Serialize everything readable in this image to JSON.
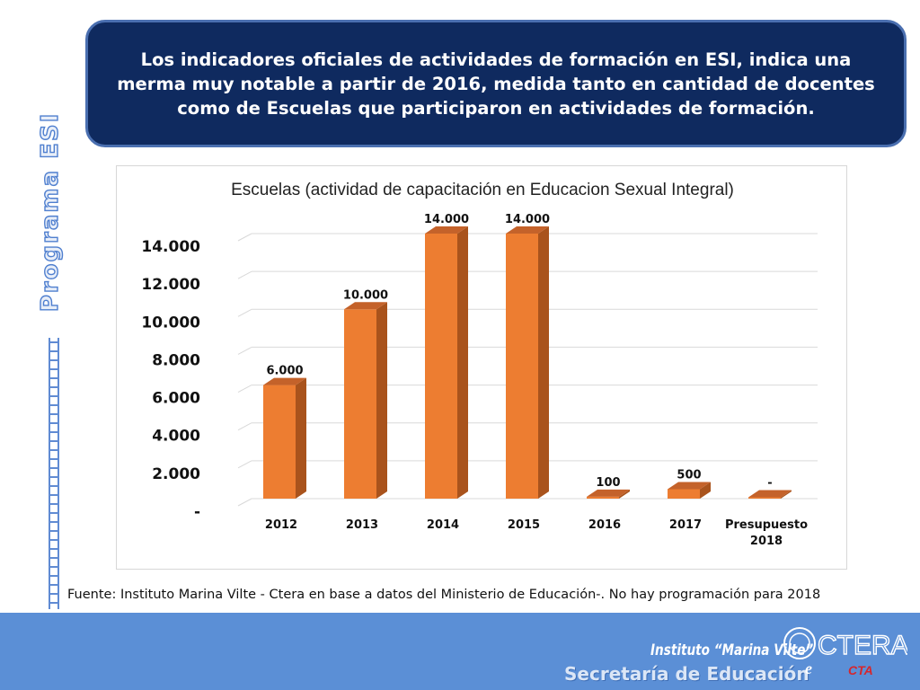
{
  "headline": "Los indicadores oficiales de actividades de formación en ESI, indica una merma muy notable a partir de 2016, medida tanto en cantidad de docentes como  de Escuelas que participaron en actividades de formación.",
  "side_title": "Programa ESI",
  "source_note": "Fuente: Instituto Marina Vilte - Ctera en base a datos del Ministerio de Educación-. No hay programación para 2018",
  "footer": {
    "institute": "Instituto “Marina Vilte”",
    "secretaria": "Secretaría de Educación",
    "logo_main": "CTERA",
    "logo_sub": "CTA"
  },
  "colors": {
    "bar_front": "#ed7d31",
    "bar_side": "#a9531c",
    "bar_top": "#c4622a",
    "headline_bg": "#0f2a5f",
    "footer_bg": "#5b8fd6"
  },
  "chart_data": {
    "type": "bar",
    "title": "Escuelas (actividad de capacitación en Educacion Sexual Integral)",
    "categories": [
      "2012",
      "2013",
      "2014",
      "2015",
      "2016",
      "2017",
      "Presupuesto 2018"
    ],
    "values": [
      6000,
      10000,
      14000,
      14000,
      100,
      500,
      0
    ],
    "data_labels": [
      "6.000",
      "10.000",
      "14.000",
      "14.000",
      "100",
      "500",
      "-"
    ],
    "y_ticks": [
      0,
      2000,
      4000,
      6000,
      8000,
      10000,
      12000,
      14000
    ],
    "y_tick_labels": [
      "-",
      "2.000",
      "4.000",
      "6.000",
      "8.000",
      "10.000",
      "12.000",
      "14.000"
    ],
    "ylim": [
      0,
      14000
    ],
    "xlabel": "",
    "ylabel": "",
    "grid": true,
    "legend": "none"
  }
}
